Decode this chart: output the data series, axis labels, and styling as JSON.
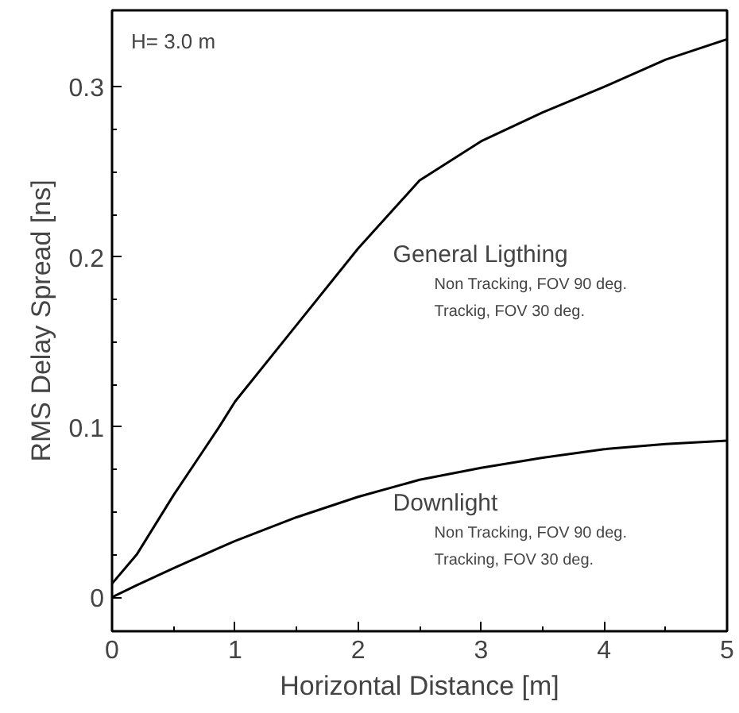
{
  "chart_data": {
    "type": "line",
    "xlabel": "Horizontal Distance [m]",
    "ylabel": "RMS Delay Spread [ns]",
    "xlim": [
      0,
      5
    ],
    "ylim": [
      -0.02,
      0.345
    ],
    "xticks": [
      0,
      1,
      2,
      3,
      4,
      5
    ],
    "yticks": [
      0,
      0.1,
      0.2,
      0.3
    ],
    "x": [
      0,
      0.2,
      0.5,
      0.87,
      1.0,
      1.5,
      2.0,
      2.5,
      3.0,
      3.5,
      4.0,
      4.5,
      5.0
    ],
    "series": [
      {
        "color": "#000000",
        "values": [
          0.008,
          0.025,
          0.06,
          0.1,
          0.115,
          0.16,
          0.205,
          0.245,
          0.268,
          0.285,
          0.3,
          0.316,
          0.328
        ]
      },
      {
        "color": "#000000",
        "values": [
          0,
          0.007,
          0.017,
          0.029,
          0.033,
          0.047,
          0.059,
          0.069,
          0.076,
          0.082,
          0.087,
          0.09,
          0.092
        ]
      }
    ],
    "annotations": [
      "H= 3.0 m",
      {
        "text": "General Ligthing",
        "x": 2.0,
        "y": 0.205
      },
      "Non Tracking, FOV 90 deg.",
      "Trackig, FOV 30 deg.",
      {
        "text": "Downlight",
        "x": 2.0,
        "y": 0.059
      },
      "Non Tracking,  FOV 90 deg.",
      "Tracking, FOV 30 deg."
    ],
    "grid": false,
    "line_style": "solid",
    "marker": "none"
  }
}
